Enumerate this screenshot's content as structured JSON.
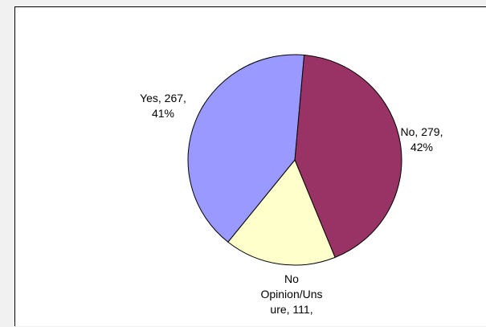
{
  "chart_data": {
    "type": "pie",
    "slices": [
      {
        "category": "No",
        "value": 279,
        "percent": "42%",
        "color": "#993366",
        "label": "No, 279,\n42%"
      },
      {
        "category": "No Opinion/Unsure",
        "value": 111,
        "percent": "",
        "color": "#FFFFCC",
        "label": "No\nOpinion/Uns\nure, 111,"
      },
      {
        "category": "Yes",
        "value": 267,
        "percent": "41%",
        "color": "#9999FF",
        "label": "Yes, 267,\n41%"
      }
    ],
    "legend": "none",
    "start_angle_deg": 5
  }
}
